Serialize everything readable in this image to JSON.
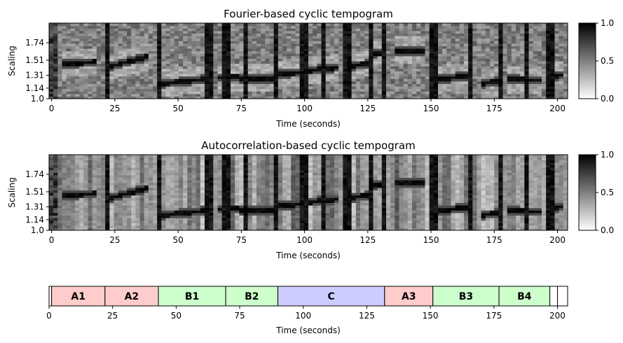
{
  "chart_data": [
    {
      "type": "heatmap",
      "title": "Fourier-based cyclic tempogram",
      "xlabel": "Time (seconds)",
      "ylabel": "Scaling",
      "xlim": [
        -1,
        204
      ],
      "ylim": [
        1.0,
        2.0
      ],
      "xticks": [
        0,
        25,
        50,
        75,
        100,
        125,
        150,
        175,
        200
      ],
      "yticks": [
        1.0,
        1.14,
        1.31,
        1.51,
        1.74
      ],
      "colormap": "gray_r",
      "colorbar": {
        "range": [
          0.0,
          1.0
        ],
        "ticks": [
          "0.0",
          "0.5",
          "1.0"
        ]
      },
      "ridges": [
        {
          "x": [
            4,
            18
          ],
          "y": [
            1.46,
            1.49
          ]
        },
        {
          "x": [
            22,
            38
          ],
          "y": [
            1.42,
            1.56
          ]
        },
        {
          "x": [
            43,
            60
          ],
          "y": [
            1.2,
            1.26
          ]
        },
        {
          "x": [
            66,
            74
          ],
          "y": [
            1.28,
            1.29
          ]
        },
        {
          "x": [
            75,
            88
          ],
          "y": [
            1.27,
            1.27
          ]
        },
        {
          "x": [
            89,
            99
          ],
          "y": [
            1.32,
            1.36
          ]
        },
        {
          "x": [
            100,
            114
          ],
          "y": [
            1.37,
            1.42
          ]
        },
        {
          "x": [
            115,
            126
          ],
          "y": [
            1.42,
            1.47
          ]
        },
        {
          "x": [
            126,
            133
          ],
          "y": [
            1.6,
            1.62
          ]
        },
        {
          "x": [
            135,
            147
          ],
          "y": [
            1.64,
            1.64
          ]
        },
        {
          "x": [
            151,
            165
          ],
          "y": [
            1.25,
            1.31
          ]
        },
        {
          "x": [
            169,
            179
          ],
          "y": [
            1.2,
            1.24
          ]
        },
        {
          "x": [
            180,
            194
          ],
          "y": [
            1.26,
            1.25
          ]
        },
        {
          "x": [
            195,
            203
          ],
          "y": [
            1.29,
            1.32
          ]
        }
      ]
    },
    {
      "type": "heatmap",
      "title": "Autocorrelation-based cyclic tempogram",
      "xlabel": "Time (seconds)",
      "ylabel": "Scaling",
      "xlim": [
        -1,
        204
      ],
      "ylim": [
        1.0,
        2.0
      ],
      "xticks": [
        0,
        25,
        50,
        75,
        100,
        125,
        150,
        175,
        200
      ],
      "yticks": [
        1.0,
        1.14,
        1.31,
        1.51,
        1.74
      ],
      "colormap": "gray_r",
      "colorbar": {
        "range": [
          0.0,
          1.0
        ],
        "ticks": [
          "0.0",
          "0.5",
          "1.0"
        ]
      },
      "ridges": [
        {
          "x": [
            4,
            18
          ],
          "y": [
            1.46,
            1.49
          ]
        },
        {
          "x": [
            22,
            38
          ],
          "y": [
            1.42,
            1.56
          ]
        },
        {
          "x": [
            43,
            60
          ],
          "y": [
            1.2,
            1.26
          ]
        },
        {
          "x": [
            66,
            74
          ],
          "y": [
            1.28,
            1.29
          ]
        },
        {
          "x": [
            75,
            88
          ],
          "y": [
            1.27,
            1.27
          ]
        },
        {
          "x": [
            89,
            99
          ],
          "y": [
            1.32,
            1.36
          ]
        },
        {
          "x": [
            100,
            114
          ],
          "y": [
            1.37,
            1.42
          ]
        },
        {
          "x": [
            115,
            126
          ],
          "y": [
            1.42,
            1.47
          ]
        },
        {
          "x": [
            126,
            133
          ],
          "y": [
            1.6,
            1.62
          ]
        },
        {
          "x": [
            135,
            147
          ],
          "y": [
            1.64,
            1.64
          ]
        },
        {
          "x": [
            151,
            165
          ],
          "y": [
            1.25,
            1.31
          ]
        },
        {
          "x": [
            169,
            179
          ],
          "y": [
            1.2,
            1.24
          ]
        },
        {
          "x": [
            180,
            194
          ],
          "y": [
            1.26,
            1.25
          ]
        },
        {
          "x": [
            195,
            203
          ],
          "y": [
            1.29,
            1.32
          ]
        }
      ]
    },
    {
      "type": "bar",
      "orientation": "horizontal-segments",
      "xlabel": "Time (seconds)",
      "xlim": [
        0,
        204
      ],
      "xticks": [
        0,
        25,
        50,
        75,
        100,
        125,
        150,
        175,
        200
      ],
      "segments": [
        {
          "label": "",
          "start": 0,
          "end": 1,
          "color": "#ffffff"
        },
        {
          "label": "A1",
          "start": 1,
          "end": 22,
          "color": "#ffcccc"
        },
        {
          "label": "A2",
          "start": 22,
          "end": 43,
          "color": "#ffcccc"
        },
        {
          "label": "B1",
          "start": 43,
          "end": 69.5,
          "color": "#ccffcc"
        },
        {
          "label": "B2",
          "start": 69.5,
          "end": 90,
          "color": "#ccffcc"
        },
        {
          "label": "C",
          "start": 90,
          "end": 132,
          "color": "#ccccff"
        },
        {
          "label": "A3",
          "start": 132,
          "end": 151,
          "color": "#ffcccc"
        },
        {
          "label": "B3",
          "start": 151,
          "end": 177,
          "color": "#ccffcc"
        },
        {
          "label": "B4",
          "start": 177,
          "end": 197,
          "color": "#ccffcc"
        },
        {
          "label": "",
          "start": 197,
          "end": 200,
          "color": "#ffffff"
        },
        {
          "label": "",
          "start": 200,
          "end": 204,
          "color": "#ffffff"
        }
      ]
    }
  ]
}
